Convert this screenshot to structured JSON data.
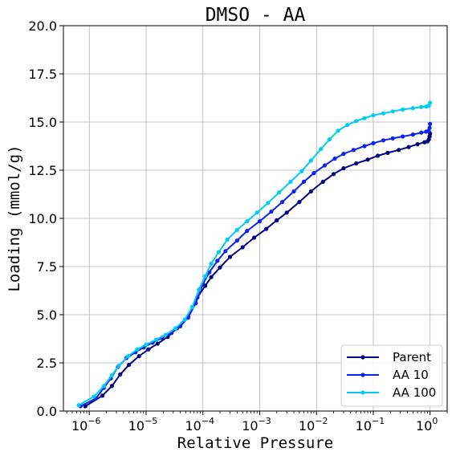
{
  "chart_data": {
    "type": "line",
    "title": "DMSO - AA",
    "xlabel": "Relative Pressure",
    "ylabel": "Loading (mmol/g)",
    "x_scale": "log",
    "xlim": [
      3.5e-07,
      2.0
    ],
    "ylim": [
      0,
      20
    ],
    "grid": true,
    "legend_position": "bottom-right",
    "y_ticks": [
      {
        "value": 0.0,
        "label": "0.0"
      },
      {
        "value": 2.5,
        "label": "2.5"
      },
      {
        "value": 5.0,
        "label": "5.0"
      },
      {
        "value": 7.5,
        "label": "7.5"
      },
      {
        "value": 10.0,
        "label": "10.0"
      },
      {
        "value": 12.5,
        "label": "12.5"
      },
      {
        "value": 15.0,
        "label": "15.0"
      },
      {
        "value": 17.5,
        "label": "17.5"
      },
      {
        "value": 20.0,
        "label": "20.0"
      }
    ],
    "x_ticks": [
      {
        "value": 1e-06,
        "base": "10",
        "exp": "−6"
      },
      {
        "value": 1e-05,
        "base": "10",
        "exp": "−5"
      },
      {
        "value": 0.0001,
        "base": "10",
        "exp": "−4"
      },
      {
        "value": 0.001,
        "base": "10",
        "exp": "−3"
      },
      {
        "value": 0.01,
        "base": "10",
        "exp": "−2"
      },
      {
        "value": 0.1,
        "base": "10",
        "exp": "−1"
      },
      {
        "value": 1,
        "base": "10",
        "exp": "0"
      }
    ],
    "series": [
      {
        "name": "Parent",
        "color": "#000080",
        "points": [
          [
            8.5e-07,
            0.25
          ],
          [
            1.7e-06,
            0.8
          ],
          [
            2.5e-06,
            1.3
          ],
          [
            3.5e-06,
            1.9
          ],
          [
            5e-06,
            2.4
          ],
          [
            7.5e-06,
            2.85
          ],
          [
            1.1e-05,
            3.2
          ],
          [
            1.6e-05,
            3.5
          ],
          [
            2.4e-05,
            3.85
          ],
          [
            3.5e-05,
            4.3
          ],
          [
            5.5e-05,
            4.9
          ],
          [
            8e-05,
            5.9
          ],
          [
            0.00011,
            6.5
          ],
          [
            0.00014,
            6.95
          ],
          [
            0.0002,
            7.45
          ],
          [
            0.0003,
            8.0
          ],
          [
            0.0005,
            8.5
          ],
          [
            0.0008,
            9.0
          ],
          [
            0.0013,
            9.45
          ],
          [
            0.002,
            9.9
          ],
          [
            0.003,
            10.3
          ],
          [
            0.005,
            10.85
          ],
          [
            0.008,
            11.4
          ],
          [
            0.013,
            11.9
          ],
          [
            0.02,
            12.3
          ],
          [
            0.03,
            12.6
          ],
          [
            0.05,
            12.85
          ],
          [
            0.08,
            13.05
          ],
          [
            0.12,
            13.25
          ],
          [
            0.18,
            13.4
          ],
          [
            0.28,
            13.55
          ],
          [
            0.42,
            13.7
          ],
          [
            0.6,
            13.85
          ],
          [
            0.8,
            13.95
          ],
          [
            0.9,
            14.0
          ],
          [
            0.95,
            14.1
          ],
          [
            0.98,
            14.25
          ],
          [
            1.0,
            14.4
          ]
        ]
      },
      {
        "name": "AA 10",
        "color": "#0a22f0",
        "points": [
          [
            7e-07,
            0.25
          ],
          [
            1.3e-06,
            0.65
          ],
          [
            1.8e-06,
            1.2
          ],
          [
            2.4e-06,
            1.7
          ],
          [
            3.2e-06,
            2.3
          ],
          [
            4.5e-06,
            2.75
          ],
          [
            6.5e-06,
            3.05
          ],
          [
            9e-06,
            3.3
          ],
          [
            1.3e-05,
            3.55
          ],
          [
            1.9e-05,
            3.8
          ],
          [
            2.8e-05,
            4.05
          ],
          [
            4e-05,
            4.4
          ],
          [
            5.5e-05,
            4.85
          ],
          [
            7.5e-05,
            5.6
          ],
          [
            0.0001,
            6.6
          ],
          [
            0.00013,
            7.2
          ],
          [
            0.00018,
            7.8
          ],
          [
            0.00025,
            8.3
          ],
          [
            0.0004,
            8.85
          ],
          [
            0.0006,
            9.35
          ],
          [
            0.001,
            9.85
          ],
          [
            0.0016,
            10.35
          ],
          [
            0.0025,
            10.85
          ],
          [
            0.004,
            11.4
          ],
          [
            0.006,
            11.9
          ],
          [
            0.009,
            12.35
          ],
          [
            0.014,
            12.75
          ],
          [
            0.021,
            13.1
          ],
          [
            0.03,
            13.35
          ],
          [
            0.045,
            13.55
          ],
          [
            0.07,
            13.75
          ],
          [
            0.1,
            13.9
          ],
          [
            0.15,
            14.05
          ],
          [
            0.22,
            14.15
          ],
          [
            0.33,
            14.25
          ],
          [
            0.5,
            14.35
          ],
          [
            0.7,
            14.45
          ],
          [
            0.85,
            14.5
          ],
          [
            0.95,
            14.55
          ],
          [
            0.98,
            14.7
          ],
          [
            1.0,
            14.9
          ]
        ]
      },
      {
        "name": "AA 100",
        "color": "#00ccf5",
        "points": [
          [
            6.5e-07,
            0.3
          ],
          [
            1.2e-06,
            0.75
          ],
          [
            1.8e-06,
            1.3
          ],
          [
            2.5e-06,
            1.85
          ],
          [
            3.3e-06,
            2.35
          ],
          [
            4.8e-06,
            2.85
          ],
          [
            7e-06,
            3.2
          ],
          [
            1e-05,
            3.45
          ],
          [
            1.5e-05,
            3.7
          ],
          [
            2.2e-05,
            3.95
          ],
          [
            3.3e-05,
            4.3
          ],
          [
            4.8e-05,
            4.75
          ],
          [
            6.5e-05,
            5.4
          ],
          [
            8.5e-05,
            6.3
          ],
          [
            0.00011,
            7.0
          ],
          [
            0.00014,
            7.65
          ],
          [
            0.00019,
            8.25
          ],
          [
            0.00027,
            8.9
          ],
          [
            0.0004,
            9.4
          ],
          [
            0.0006,
            9.85
          ],
          [
            0.0009,
            10.3
          ],
          [
            0.0014,
            10.8
          ],
          [
            0.0022,
            11.35
          ],
          [
            0.0035,
            11.9
          ],
          [
            0.0055,
            12.45
          ],
          [
            0.008,
            13.0
          ],
          [
            0.012,
            13.6
          ],
          [
            0.017,
            14.1
          ],
          [
            0.024,
            14.55
          ],
          [
            0.035,
            14.85
          ],
          [
            0.05,
            15.05
          ],
          [
            0.07,
            15.2
          ],
          [
            0.1,
            15.35
          ],
          [
            0.15,
            15.45
          ],
          [
            0.22,
            15.55
          ],
          [
            0.33,
            15.65
          ],
          [
            0.5,
            15.72
          ],
          [
            0.7,
            15.78
          ],
          [
            0.85,
            15.8
          ],
          [
            0.95,
            15.85
          ],
          [
            1.0,
            16.0
          ]
        ]
      }
    ]
  }
}
